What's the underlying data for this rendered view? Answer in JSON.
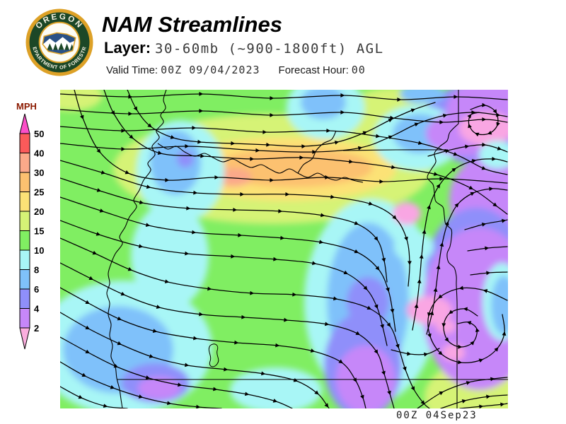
{
  "header": {
    "title": "NAM Streamlines",
    "layer_label": "Layer:",
    "layer_value": "30-60mb (~900-1800ft) AGL",
    "valid_time_label": "Valid Time:",
    "valid_time_value": "00Z 09/04/2023",
    "forecast_hour_label": "Forecast Hour:",
    "forecast_hour_value": "00"
  },
  "logo": {
    "top_text": "OREGON",
    "bottom_text": "DEPARTMENT OF FORESTRY",
    "ring_color": "#1c4727",
    "border_color": "#dda127",
    "text_color": "#f7f3e2"
  },
  "legend": {
    "unit": "MPH",
    "labels": [
      "50",
      "40",
      "30",
      "25",
      "20",
      "15",
      "10",
      "8",
      "6",
      "4",
      "2"
    ],
    "segment_colors": [
      "#fb5a5a",
      "#fba98a",
      "#fcc170",
      "#fce276",
      "#d6f376",
      "#80ee62",
      "#a8f6f6",
      "#7fc1fa",
      "#8f8ffa",
      "#c687f9"
    ],
    "arrow_top_color": "#fb4fc8",
    "arrow_bottom_color": "#fbaede",
    "speed_palette": {
      "gt50": "#fb4fc8",
      "40_50": "#fb5a5a",
      "30_40": "#fba98a",
      "25_30": "#fcc170",
      "20_25": "#fce276",
      "15_20": "#d6f376",
      "10_15": "#80ee62",
      "8_10": "#a8f6f6",
      "6_8": "#7fc1fa",
      "4_6": "#8f8ffa",
      "2_4": "#c687f9",
      "lt2": "#fbaede"
    }
  },
  "map": {
    "timestamp": "00Z 04Sep23",
    "streamline_color": "#000000"
  }
}
